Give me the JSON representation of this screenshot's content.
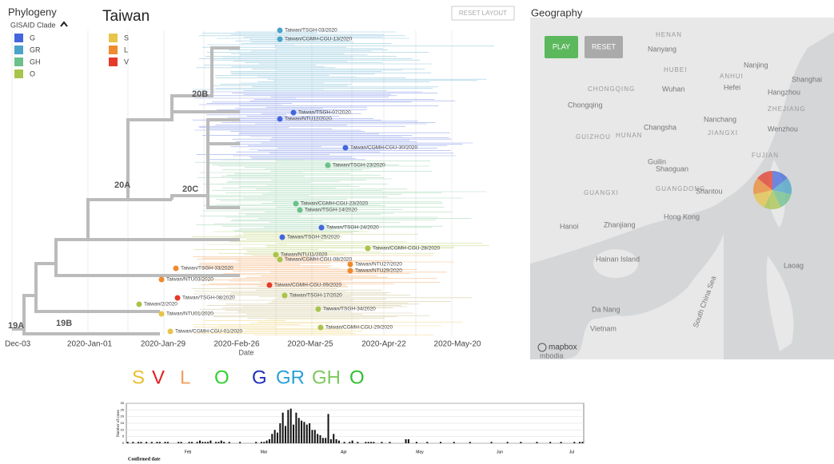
{
  "header": {
    "panel_title": "Phylogeny",
    "region": "Taiwan",
    "reset_layout": "RESET LAYOUT",
    "geo_title": "Geography"
  },
  "legend": {
    "title": "GISAID Clade",
    "items": [
      {
        "name": "G",
        "color": "#4466dd"
      },
      {
        "name": "GR",
        "color": "#4aa3c8"
      },
      {
        "name": "GH",
        "color": "#6cc08a"
      },
      {
        "name": "O",
        "color": "#a8c44a"
      },
      {
        "name": "S",
        "color": "#e8c44a"
      },
      {
        "name": "L",
        "color": "#ef8a30"
      },
      {
        "name": "V",
        "color": "#e53a2a"
      }
    ]
  },
  "tree": {
    "clade_labels": [
      "20B",
      "20A",
      "20C",
      "19A",
      "19B"
    ],
    "tips": [
      {
        "label": "Taiwan/TSGH-03/2020",
        "clade": "GR"
      },
      {
        "label": "Taiwan/CGMH-CGU-13/2020",
        "clade": "GR"
      },
      {
        "label": "Taiwan/TSGH-07/2020",
        "clade": "G"
      },
      {
        "label": "Taiwan/NTU12/2020",
        "clade": "G"
      },
      {
        "label": "Taiwan/CGMH-CGU-30/2020",
        "clade": "G"
      },
      {
        "label": "Taiwan/TSGH-23/2020",
        "clade": "GH"
      },
      {
        "label": "Taiwan/CGMH-CGU-23/2020",
        "clade": "GH"
      },
      {
        "label": "Taiwan/TSGH-14/2020",
        "clade": "GH"
      },
      {
        "label": "Taiwan/TSGH-24/2020",
        "clade": "G"
      },
      {
        "label": "Taiwan/TSGH-25/2020",
        "clade": "G"
      },
      {
        "label": "Taiwan/CGMH-CGU-28/2020",
        "clade": "O"
      },
      {
        "label": "Taiwan/NTU11/2020",
        "clade": "O"
      },
      {
        "label": "Taiwan/CGMH-CGU-08/2020",
        "clade": "O"
      },
      {
        "label": "Taiwan/TSGH-33/2020",
        "clade": "L"
      },
      {
        "label": "Taiwan/NTU27/2020",
        "clade": "L"
      },
      {
        "label": "Taiwan/NTU29/2020",
        "clade": "L"
      },
      {
        "label": "Taiwan/NTU03/2020",
        "clade": "L"
      },
      {
        "label": "Taiwan/CGMH-CGU-09/2020",
        "clade": "V"
      },
      {
        "label": "Taiwan/TSGH-17/2020",
        "clade": "O"
      },
      {
        "label": "Taiwan/TSGH-08/2020",
        "clade": "V"
      },
      {
        "label": "Taiwan/2/2020",
        "clade": "O"
      },
      {
        "label": "Taiwan/TSGH-34/2020",
        "clade": "O"
      },
      {
        "label": "Taiwan/NTU01/2020",
        "clade": "S"
      },
      {
        "label": "Taiwan/CGMH-CGU-29/2020",
        "clade": "O"
      },
      {
        "label": "Taiwan/CGMH-CGU-01/2020",
        "clade": "S"
      }
    ],
    "x_ticks": [
      "Dec-03",
      "2020-Jan-01",
      "2020-Jan-29",
      "2020-Feb-26",
      "2020-Mar-25",
      "2020-Apr-22",
      "2020-May-20"
    ],
    "x_label": "Date"
  },
  "map": {
    "play": "PLAY",
    "reset": "RESET",
    "attribution": "mapbox",
    "places": [
      "HENAN",
      "Nanyang",
      "HUBEI",
      "ANHUI",
      "Nanjing",
      "Shanghai",
      "Wuhan",
      "Hefei",
      "CHONGQING",
      "Chongqing",
      "Hangzhou",
      "ZHEJIANG",
      "Changsha",
      "Nanchang",
      "JIANGXI",
      "HUNAN",
      "Wenzhou",
      "GUIZHOU",
      "FUJIAN",
      "Guilin",
      "Shaoguan",
      "GUANGXI",
      "GUANGDONG",
      "Shantou",
      "Zhanjiang",
      "Hong Kong",
      "Hanoi",
      "Hainan Island",
      "Da Nang",
      "Vietnam",
      "South China Sea",
      "Laoag",
      "mbodia"
    ]
  },
  "clade_letters": [
    {
      "text": "S",
      "color": "#e8c030"
    },
    {
      "text": "V",
      "color": "#e02020"
    },
    {
      "text": "L",
      "color": "#f0a060"
    },
    {
      "text": "O",
      "color": "#30d030"
    },
    {
      "text": "G",
      "color": "#2030c0"
    },
    {
      "text": "GR",
      "color": "#2aa0d8"
    },
    {
      "text": "GH",
      "color": "#80c860"
    },
    {
      "text": "O",
      "color": "#30c030"
    }
  ],
  "cases_chart": {
    "type": "bar",
    "y_label": "Number of cases",
    "x_label": "Confirmed date",
    "ylim": [
      0,
      30
    ],
    "yticks": [
      0,
      5,
      10,
      15,
      20,
      25,
      30
    ],
    "color": "#111111",
    "months": [
      "Feb",
      "Mar",
      "Apr",
      "May",
      "Jun",
      "Jul"
    ],
    "values": [
      1,
      0,
      1,
      0,
      1,
      1,
      0,
      1,
      0,
      1,
      0,
      1,
      1,
      0,
      1,
      1,
      0,
      0,
      0,
      1,
      1,
      0,
      0,
      1,
      1,
      0,
      1,
      2,
      1,
      1,
      1,
      2,
      0,
      1,
      1,
      2,
      1,
      0,
      1,
      0,
      0,
      0,
      1,
      0,
      0,
      0,
      0,
      0,
      1,
      0,
      1,
      1,
      2,
      3,
      7,
      10,
      8,
      15,
      23,
      13,
      25,
      26,
      14,
      23,
      19,
      17,
      16,
      14,
      15,
      10,
      10,
      7,
      6,
      4,
      4,
      22,
      3,
      7,
      3,
      2,
      0,
      1,
      0,
      1,
      2,
      0,
      1,
      0,
      0,
      1,
      1,
      1,
      1,
      0,
      0,
      1,
      0,
      0,
      1,
      0,
      0,
      0,
      0,
      0,
      3,
      3,
      0,
      0,
      1,
      0,
      0,
      0,
      1,
      0,
      0,
      0,
      0,
      1,
      0,
      0,
      0,
      0,
      1,
      0,
      0,
      0,
      0,
      0,
      1,
      0,
      0,
      0,
      0,
      0,
      0,
      0,
      1,
      0,
      0,
      0,
      0,
      0,
      1,
      0,
      0,
      0,
      0,
      1,
      0,
      0,
      0,
      0,
      0,
      1,
      0,
      0,
      0,
      0,
      1,
      0,
      0,
      0,
      1,
      0,
      0,
      0,
      0,
      1,
      0,
      1,
      1
    ]
  }
}
